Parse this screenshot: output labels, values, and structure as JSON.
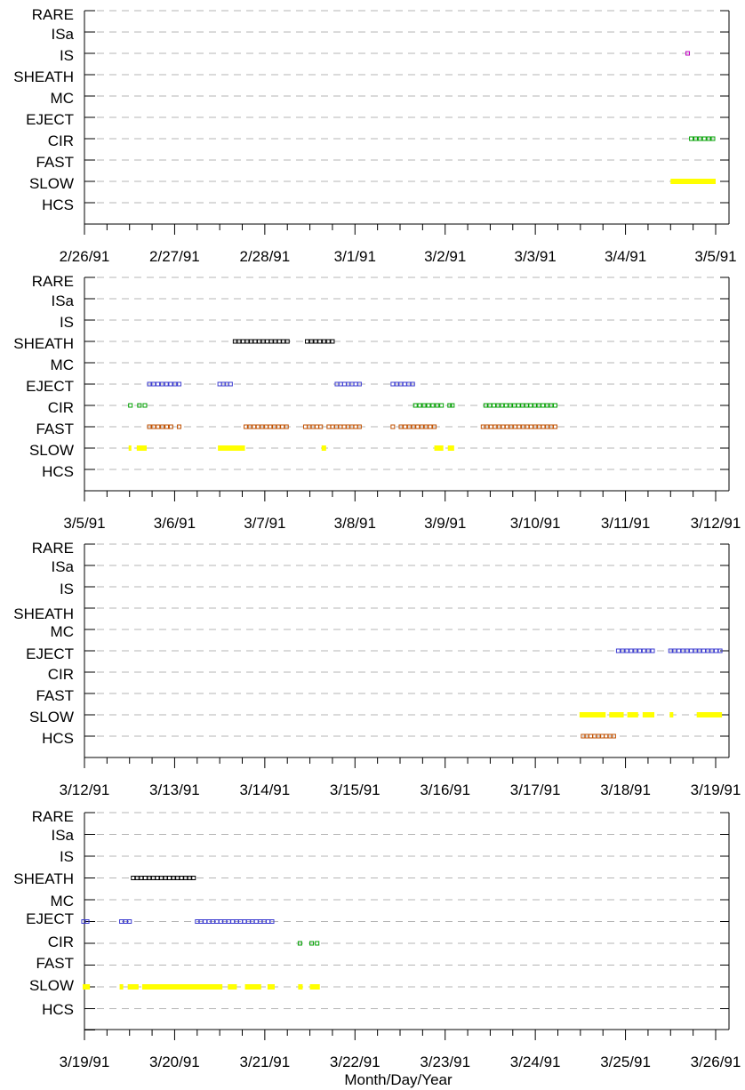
{
  "chart_data": {
    "type": "scatter",
    "xlabel": "Month/Day/Year",
    "categories": [
      "RARE",
      "ISa",
      "IS",
      "SHEATH",
      "MC",
      "EJECT",
      "CIR",
      "FAST",
      "SLOW",
      "HCS"
    ],
    "colors": {
      "IS": "#c000c0",
      "SHEATH": "#000000",
      "EJECT": "#3c3cd0",
      "CIR": "#00a000",
      "FAST": "#c05000",
      "SLOW": "#ffff00",
      "HCS": "#c05000",
      "grid": "#b4b4b4"
    },
    "panels": [
      {
        "x_range": [
          "2/26/91",
          "3/5/91"
        ],
        "tick_labels": [
          "2/26/91",
          "2/27/91",
          "2/28/91",
          "3/1/91",
          "3/2/91",
          "3/3/91",
          "3/4/91",
          "3/5/91"
        ],
        "series": [
          {
            "category": "IS",
            "intervals": [
              [
                6.67,
                6.71
              ]
            ]
          },
          {
            "category": "CIR",
            "intervals": [
              [
                6.71,
                6.99
              ]
            ]
          },
          {
            "category": "SLOW",
            "intervals": [
              [
                6.5,
                7.0
              ]
            ]
          }
        ]
      },
      {
        "x_range": [
          "3/5/91",
          "3/12/91"
        ],
        "tick_labels": [
          "3/5/91",
          "3/6/91",
          "3/7/91",
          "3/8/91",
          "3/9/91",
          "3/10/91",
          "3/11/91",
          "3/12/91"
        ],
        "series": [
          {
            "category": "SHEATH",
            "intervals": [
              [
                1.65,
                2.27
              ],
              [
                2.45,
                2.77
              ]
            ]
          },
          {
            "category": "EJECT",
            "intervals": [
              [
                0.7,
                1.07
              ],
              [
                1.48,
                1.64
              ],
              [
                2.78,
                3.07
              ],
              [
                3.4,
                3.66
              ]
            ]
          },
          {
            "category": "CIR",
            "intervals": [
              [
                0.49,
                0.53
              ],
              [
                0.59,
                0.69
              ],
              [
                3.65,
                3.98
              ],
              [
                4.03,
                4.1
              ],
              [
                4.43,
                5.24
              ]
            ]
          },
          {
            "category": "FAST",
            "intervals": [
              [
                0.7,
                0.98
              ],
              [
                1.03,
                1.07
              ],
              [
                1.77,
                2.26
              ],
              [
                2.43,
                2.64
              ],
              [
                2.69,
                3.07
              ],
              [
                3.4,
                3.45
              ],
              [
                3.49,
                3.9
              ],
              [
                4.4,
                5.24
              ]
            ]
          },
          {
            "category": "SLOW",
            "intervals": [
              [
                0.49,
                0.52
              ],
              [
                0.58,
                0.69
              ],
              [
                1.48,
                1.78
              ],
              [
                2.63,
                2.68
              ],
              [
                3.88,
                3.98
              ],
              [
                4.03,
                4.1
              ]
            ]
          }
        ]
      },
      {
        "x_range": [
          "3/12/91",
          "3/19/91"
        ],
        "tick_labels": [
          "3/12/91",
          "3/13/91",
          "3/14/91",
          "3/15/91",
          "3/16/91",
          "3/17/91",
          "3/18/91",
          "3/19/91"
        ],
        "series": [
          {
            "category": "EJECT",
            "intervals": [
              [
                5.9,
                6.32
              ],
              [
                6.48,
                7.07
              ]
            ]
          },
          {
            "category": "SLOW",
            "intervals": [
              [
                5.49,
                5.78
              ],
              [
                5.82,
                5.98
              ],
              [
                6.02,
                6.14
              ],
              [
                6.19,
                6.32
              ],
              [
                6.49,
                6.53
              ],
              [
                6.79,
                7.07
              ]
            ]
          },
          {
            "category": "HCS",
            "intervals": [
              [
                5.51,
                5.89
              ]
            ]
          }
        ]
      },
      {
        "x_range": [
          "3/19/91",
          "3/26/91"
        ],
        "tick_labels": [
          "3/19/91",
          "3/20/91",
          "3/21/91",
          "3/22/91",
          "3/23/91",
          "3/24/91",
          "3/25/91",
          "3/26/91"
        ],
        "series": [
          {
            "category": "SHEATH",
            "intervals": [
              [
                0.52,
                1.23
              ]
            ]
          },
          {
            "category": "EJECT",
            "intervals": [
              [
                -0.03,
                0.05
              ],
              [
                0.39,
                0.52
              ],
              [
                1.23,
                2.1
              ]
            ]
          },
          {
            "category": "CIR",
            "intervals": [
              [
                2.37,
                2.41
              ],
              [
                2.5,
                2.6
              ]
            ]
          },
          {
            "category": "SLOW",
            "intervals": [
              [
                -0.02,
                0.06
              ],
              [
                0.39,
                0.43
              ],
              [
                0.48,
                0.6
              ],
              [
                0.64,
                1.53
              ],
              [
                1.59,
                1.69
              ],
              [
                1.78,
                1.96
              ],
              [
                2.03,
                2.11
              ],
              [
                2.37,
                2.42
              ],
              [
                2.5,
                2.61
              ]
            ]
          }
        ]
      }
    ]
  }
}
